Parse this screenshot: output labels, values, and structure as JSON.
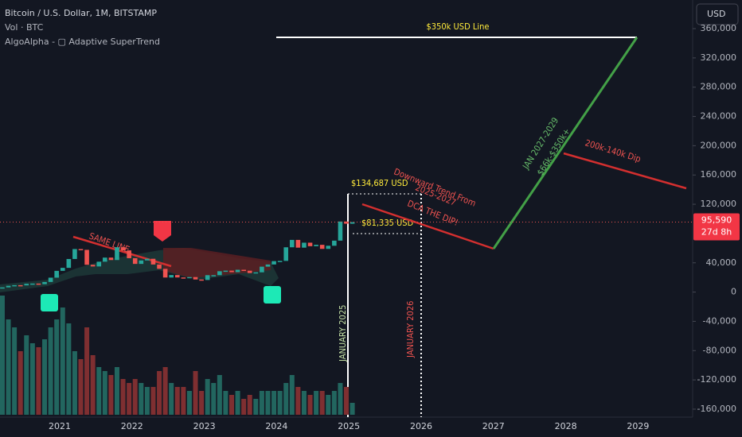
{
  "header": {
    "symbol": "Bitcoin / U.S. Dollar, 1M, BITSTAMP",
    "volume": "Vol · BTC",
    "indicator": "AlgoAlpha - ▢ Adaptive SuperTrend",
    "currency": "USD"
  },
  "price_axis": {
    "ticks": [
      {
        "value": 360000,
        "label": "360,000"
      },
      {
        "value": 320000,
        "label": "320,000"
      },
      {
        "value": 280000,
        "label": "280,000"
      },
      {
        "value": 240000,
        "label": "240,000"
      },
      {
        "value": 200000,
        "label": "200,000"
      },
      {
        "value": 160000,
        "label": "160,000"
      },
      {
        "value": 120000,
        "label": "120,000"
      },
      {
        "value": 40000,
        "label": "40,000"
      },
      0,
      {
        "value": -40000,
        "label": "-40,000"
      },
      {
        "value": -80000,
        "label": "-80,000"
      },
      {
        "value": -120000,
        "label": "-120,000"
      },
      {
        "value": -160000,
        "label": "-160,000"
      }
    ],
    "last_price": {
      "value": 95590,
      "label": "95,590"
    },
    "countdown": "27d 8h"
  },
  "time_axis": {
    "labels": [
      "2021",
      "2022",
      "2023",
      "2024",
      "2025",
      "2026",
      "2027",
      "2028",
      "2029"
    ]
  },
  "candles": {
    "closes": [
      6400,
      8600,
      9450,
      9140,
      11350,
      11650,
      10780,
      13800,
      19700,
      29000,
      33100,
      45200,
      58800,
      57700,
      37300,
      35000,
      41500,
      47100,
      43800,
      61300,
      57000,
      46300,
      38500,
      43200,
      45500,
      37700,
      31800,
      19900,
      23300,
      20000,
      19400,
      20500,
      17200,
      16500,
      23100,
      23100,
      28500,
      29300,
      27200,
      30500,
      29200,
      26000,
      27000,
      34700,
      37700,
      42300,
      42600,
      61200,
      71300,
      60700,
      67500,
      62700,
      64600,
      59000,
      63300,
      70300,
      96400,
      93400,
      95590
    ]
  },
  "volume": {
    "ylim": [
      0,
      200
    ],
    "values": [
      150,
      120,
      110,
      80,
      100,
      90,
      85,
      95,
      110,
      120,
      135,
      115,
      80,
      70,
      110,
      75,
      60,
      55,
      50,
      60,
      45,
      40,
      45,
      40,
      35,
      35,
      55,
      60,
      40,
      35,
      35,
      30,
      55,
      30,
      45,
      40,
      50,
      30,
      25,
      30,
      20,
      25,
      20,
      30,
      30,
      30,
      30,
      40,
      50,
      35,
      30,
      25,
      30,
      30,
      25,
      30,
      40,
      35,
      15
    ]
  },
  "annotations": {
    "line_350k": "$350k USD Line",
    "high": "$134,687 USD",
    "low": "$81,335 USD",
    "downtrend": [
      "Downward Trend  From",
      "2025-2027",
      "DCA THE DIP!"
    ],
    "uptrend": [
      "JAN 2027-2029",
      "$66k-$350k+"
    ],
    "dip": "200k-140k Dip",
    "same_line": "SAME LINE",
    "jan2025": "JANUARY 2025",
    "jan2026": "JANUARY 2026"
  }
}
